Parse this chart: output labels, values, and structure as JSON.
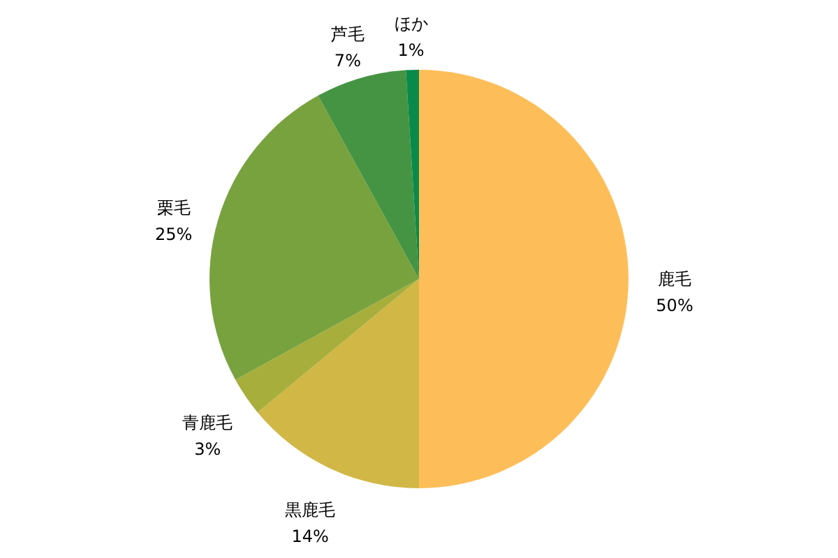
{
  "chart_data": {
    "type": "pie",
    "categories": [
      "鹿毛",
      "黒鹿毛",
      "青鹿毛",
      "栗毛",
      "芦毛",
      "ほか"
    ],
    "values": [
      50,
      14,
      3,
      25,
      7,
      1
    ],
    "colors": [
      "#fdbe5a",
      "#d1b746",
      "#a7ae3b",
      "#78a23e",
      "#459443",
      "#0a8a4a"
    ],
    "value_labels": [
      "50%",
      "14%",
      "3%",
      "25%",
      "7%",
      "1%"
    ],
    "legend": false
  }
}
